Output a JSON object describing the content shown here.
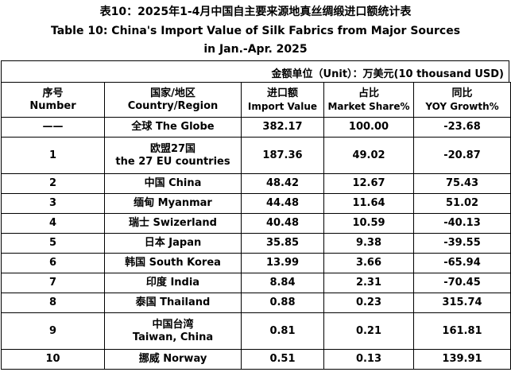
{
  "title": {
    "line1": "表10：2025年1-4月中国自主要来源地真丝绸缎进口额统计表",
    "line2": "Table 10: China's Import Value of Silk Fabrics from Major Sources",
    "line3": "in Jan.-Apr. 2025"
  },
  "unit": "金额单位（Unit）：万美元(10 thousand USD)",
  "headers": {
    "no_cn": "序号",
    "no_en": "Number",
    "country_cn": "国家/地区",
    "country_en": "Country/Region",
    "value_cn": "进口额",
    "value_en": "Import Value",
    "share_cn": "占比",
    "share_en": "Market Share%",
    "yoy_cn": "同比",
    "yoy_en": "YOY Growth%"
  },
  "rows": [
    {
      "no": "——",
      "country": "全球 The Globe",
      "country2": "",
      "value": "382.17",
      "share": "100.00",
      "yoy": "-23.68"
    },
    {
      "no": "1",
      "country": "欧盟27国",
      "country2": "the 27 EU countries",
      "value": "187.36",
      "share": "49.02",
      "yoy": "-20.87"
    },
    {
      "no": "2",
      "country": "中国 China",
      "country2": "",
      "value": "48.42",
      "share": "12.67",
      "yoy": "75.43"
    },
    {
      "no": "3",
      "country": "缅甸 Myanmar",
      "country2": "",
      "value": "44.48",
      "share": "11.64",
      "yoy": "51.02"
    },
    {
      "no": "4",
      "country": "瑞士 Swizerland",
      "country2": "",
      "value": "40.48",
      "share": "10.59",
      "yoy": "-40.13"
    },
    {
      "no": "5",
      "country": "日本 Japan",
      "country2": "",
      "value": "35.85",
      "share": "9.38",
      "yoy": "-39.55"
    },
    {
      "no": "6",
      "country": "韩国 South Korea",
      "country2": "",
      "value": "13.99",
      "share": "3.66",
      "yoy": "-65.94"
    },
    {
      "no": "7",
      "country": "印度 India",
      "country2": "",
      "value": "8.84",
      "share": "2.31",
      "yoy": "-70.45"
    },
    {
      "no": "8",
      "country": "泰国 Thailand",
      "country2": "",
      "value": "0.88",
      "share": "0.23",
      "yoy": "315.74"
    },
    {
      "no": "9",
      "country": "中国台湾",
      "country2": "Taiwan, China",
      "value": "0.81",
      "share": "0.21",
      "yoy": "161.81"
    },
    {
      "no": "10",
      "country": "挪威 Norway",
      "country2": "",
      "value": "0.51",
      "share": "0.13",
      "yoy": "139.91"
    }
  ]
}
